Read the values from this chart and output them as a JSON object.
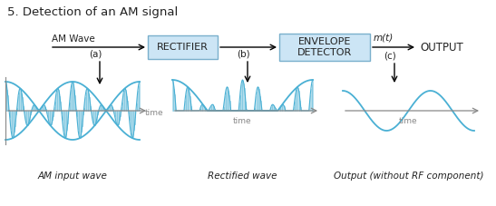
{
  "title": "5. Detection of an AM signal",
  "title_fontsize": 9.5,
  "bg_color": "#ffffff",
  "box_color": "#cce5f5",
  "box_edge_color": "#7ab0cc",
  "wave_color": "#4ab0d4",
  "axis_color": "#555555",
  "text_color": "#222222",
  "rectifier_label": "RECTIFIER",
  "detector_label": "ENVELOPE\nDETECTOR",
  "output_label": "OUTPUT",
  "am_wave_label": "AM Wave",
  "mt_label": "m(t)",
  "a_label": "(a)",
  "b_label": "(b)",
  "c_label": "(c)",
  "time_label": "time",
  "bottom_label1": "AM input wave",
  "bottom_label2": "Rectified wave",
  "bottom_label3": "Output (without RF component)",
  "figw": 5.47,
  "figh": 2.27,
  "dpi": 100
}
